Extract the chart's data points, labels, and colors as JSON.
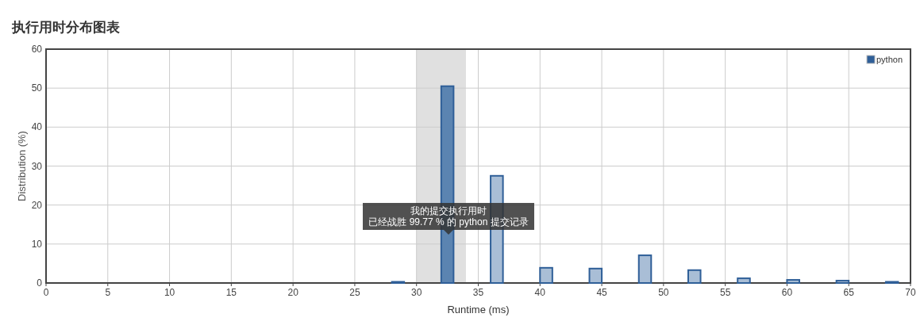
{
  "chart_data": {
    "type": "bar",
    "title": "执行用时分布图表",
    "xlabel": "Runtime (ms)",
    "ylabel": "Distribution (%)",
    "x": [
      28.5,
      32.5,
      36.5,
      40.5,
      44.5,
      48.5,
      52.5,
      56.5,
      60.5,
      64.5,
      68.5
    ],
    "series": [
      {
        "name": "python",
        "color": "#2f5f98",
        "colors": [
          "#2f5f98",
          "#5b84b1",
          "#a9bed6",
          "#a9bed6",
          "#a9bed6",
          "#a9bed6",
          "#a9bed6",
          "#a9bed6",
          "#a9bed6",
          "#a9bed6",
          "#2f5f98"
        ],
        "values": [
          0.3,
          50.5,
          27.5,
          3.9,
          3.7,
          7.1,
          3.3,
          1.2,
          0.8,
          0.6,
          0.3
        ]
      }
    ],
    "xlim": [
      0,
      70
    ],
    "xticks": [
      0,
      5,
      10,
      15,
      20,
      25,
      30,
      35,
      40,
      45,
      50,
      55,
      60,
      65,
      70
    ],
    "ylim": [
      0,
      60
    ],
    "yticks": [
      0,
      10,
      20,
      30,
      40,
      50,
      60
    ],
    "bands": [
      {
        "axis": "x",
        "from": 30,
        "to": 34,
        "color": "#e0e0e0"
      }
    ],
    "annotations": [
      "我的提交执行用时",
      "已经战胜 99.77 % 的 python 提交记录"
    ],
    "grid": true,
    "legend": "top right"
  }
}
